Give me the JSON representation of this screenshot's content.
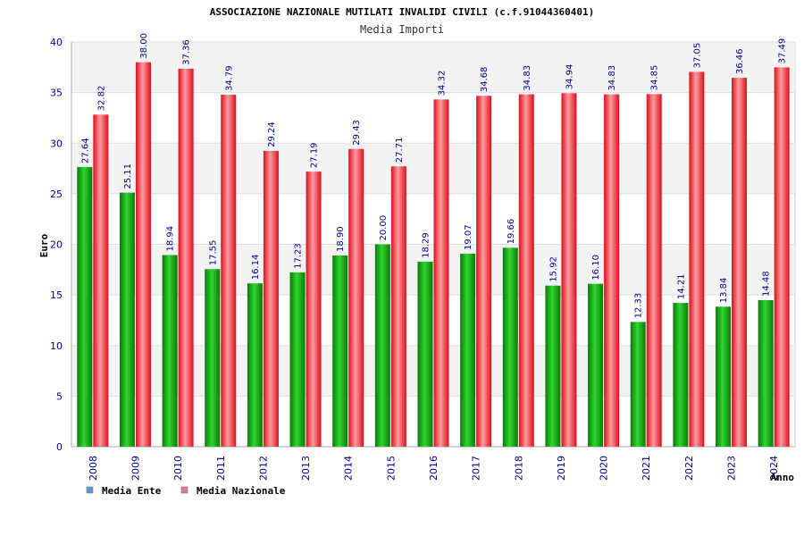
{
  "chart_data": {
    "type": "bar",
    "title": "ASSOCIAZIONE NAZIONALE MUTILATI INVALIDI CIVILI (c.f.91044360401)",
    "subtitle": "Media Importi",
    "xlabel": "Anno",
    "ylabel": "Euro",
    "ylim": [
      0,
      40
    ],
    "yticks": [
      0,
      5,
      10,
      15,
      20,
      25,
      30,
      35,
      40
    ],
    "grid": true,
    "legend_position": "bottom-left",
    "categories": [
      "2008",
      "2009",
      "2010",
      "2011",
      "2012",
      "2013",
      "2014",
      "2015",
      "2016",
      "2017",
      "2018",
      "2019",
      "2020",
      "2021",
      "2022",
      "2023",
      "2024"
    ],
    "series": [
      {
        "name": "Media Ente",
        "color": "#1fb81f",
        "legend_color": "#5b9bd5",
        "values": [
          27.64,
          25.11,
          18.94,
          17.55,
          16.14,
          17.23,
          18.9,
          20.0,
          18.29,
          19.07,
          19.66,
          15.92,
          16.1,
          12.33,
          14.21,
          13.84,
          14.48
        ],
        "labels": [
          "27.64",
          "25.11",
          "18.94",
          "17.55",
          "16.14",
          "17.23",
          "18.90",
          "20.00",
          "18.29",
          "19.07",
          "19.66",
          "15.92",
          "16.10",
          "12.33",
          "14.21",
          "13.84",
          "14.48"
        ]
      },
      {
        "name": "Media Nazionale",
        "color": "#e8303a",
        "legend_color": "#d977a8",
        "values": [
          32.82,
          38.0,
          37.36,
          34.79,
          29.24,
          27.19,
          29.43,
          27.71,
          34.32,
          34.68,
          34.83,
          34.94,
          34.83,
          34.85,
          37.05,
          36.46,
          37.49
        ],
        "labels": [
          "32.82",
          "38.00",
          "37.36",
          "34.79",
          "29.24",
          "27.19",
          "29.43",
          "27.71",
          "34.32",
          "34.68",
          "34.83",
          "34.94",
          "34.83",
          "34.85",
          "37.05",
          "36.46",
          "37.49"
        ]
      }
    ]
  }
}
